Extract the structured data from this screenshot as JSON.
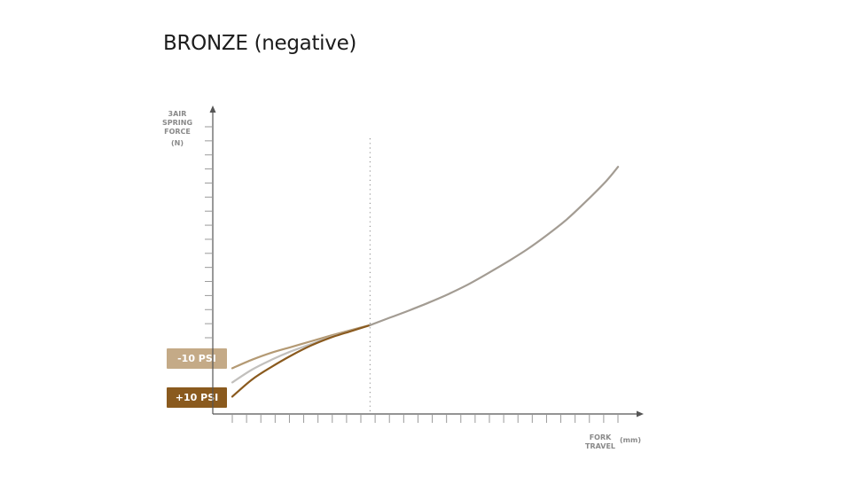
{
  "chart_data": {
    "type": "line",
    "title": "BRONZE (negative)",
    "ylabel_lines": [
      "3AIR",
      "SPRING",
      "FORCE"
    ],
    "ylabel_unit": "(N)",
    "xlabel_lines": [
      "FORK",
      "TRAVEL"
    ],
    "xlabel_unit": "(mm)",
    "grid": false,
    "x_ticks": 28,
    "y_ticks": 16,
    "reference_line_x": 0.35,
    "series": [
      {
        "name": "-10 PSI",
        "color": "#b49a74",
        "points": [
          [
            0,
            0.08
          ],
          [
            0.05,
            0.11
          ],
          [
            0.1,
            0.135
          ],
          [
            0.15,
            0.155
          ],
          [
            0.2,
            0.175
          ],
          [
            0.25,
            0.195
          ],
          [
            0.3,
            0.214
          ],
          [
            0.35,
            0.232
          ]
        ]
      },
      {
        "name": "",
        "color": "#c2c0bd",
        "points": [
          [
            0,
            0.03
          ],
          [
            0.05,
            0.075
          ],
          [
            0.1,
            0.11
          ],
          [
            0.15,
            0.14
          ],
          [
            0.2,
            0.165
          ],
          [
            0.25,
            0.19
          ],
          [
            0.3,
            0.211
          ],
          [
            0.35,
            0.232
          ]
        ]
      },
      {
        "name": "+10 PSI",
        "color": "#8a5a1e",
        "points": [
          [
            0,
            -0.02
          ],
          [
            0.05,
            0.04
          ],
          [
            0.1,
            0.085
          ],
          [
            0.15,
            0.125
          ],
          [
            0.2,
            0.16
          ],
          [
            0.25,
            0.188
          ],
          [
            0.3,
            0.21
          ],
          [
            0.35,
            0.232
          ]
        ]
      },
      {
        "name": "",
        "color": "#a39c93",
        "points": [
          [
            0.35,
            0.232
          ],
          [
            0.4,
            0.258
          ],
          [
            0.45,
            0.284
          ],
          [
            0.5,
            0.312
          ],
          [
            0.55,
            0.342
          ],
          [
            0.6,
            0.376
          ],
          [
            0.65,
            0.415
          ],
          [
            0.7,
            0.456
          ],
          [
            0.75,
            0.5
          ],
          [
            0.8,
            0.55
          ],
          [
            0.85,
            0.605
          ],
          [
            0.9,
            0.67
          ],
          [
            0.95,
            0.74
          ],
          [
            0.98,
            0.79
          ]
        ]
      }
    ]
  },
  "legend": {
    "minus_label": "-10 PSI",
    "plus_label": "+10 PSI"
  }
}
